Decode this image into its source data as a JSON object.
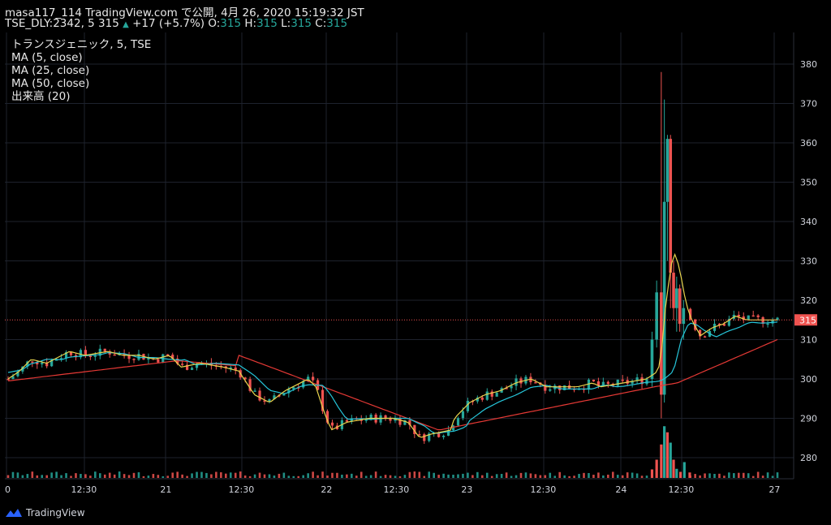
{
  "header": {
    "publish_line": "masa117_114 TradingView.com で公開, 4月 26, 2020 15:19:32 JST",
    "symbol_price": "TSE_DLY:2342, 5 315",
    "change_arrow": "▲",
    "change": "+17 (+5.7%)",
    "o_label": "O:",
    "o_value": "315",
    "h_label": "H:",
    "h_value": "315",
    "l_label": "L:",
    "l_value": "315",
    "c_label": "C:",
    "c_value": "315"
  },
  "legend": {
    "symbol": "トランスジェニック, 5, TSE",
    "ma5": "MA (5, close)",
    "ma25": "MA (25, close)",
    "ma50": "MA (50, close)",
    "volume": "出来高 (20)"
  },
  "footer": {
    "brand": "TradingView",
    "icon": "tradingview-logo-icon"
  },
  "colors": {
    "up": "#26a69a",
    "down": "#ef5350",
    "ma5": "#e8d44d",
    "ma25": "#26c6da",
    "ma50": "#e53935",
    "grid": "#1e222d",
    "text": "#d1d4dc",
    "price_tag": "#ef5350"
  },
  "chart_data": {
    "type": "candlestick",
    "y_axis": {
      "ticks": [
        280,
        290,
        300,
        310,
        320,
        330,
        340,
        350,
        360,
        370,
        380
      ],
      "range": [
        275,
        388
      ]
    },
    "x_axis": {
      "ticks": [
        "0",
        "12:30",
        "21",
        "12:30",
        "22",
        "12:30",
        "23",
        "12:30",
        "24",
        "12:30",
        "27"
      ]
    },
    "last_price": 315,
    "last_price_label": "315",
    "anchors": [
      [
        0,
        300,
        303
      ],
      [
        0.015,
        302,
        304
      ],
      [
        0.03,
        305,
        306
      ],
      [
        0.05,
        304,
        305
      ],
      [
        0.08,
        307,
        306
      ],
      [
        0.1,
        306,
        305
      ],
      [
        0.13,
        307,
        307
      ],
      [
        0.15,
        306,
        306
      ],
      [
        0.17,
        306,
        305
      ],
      [
        0.19,
        305,
        305
      ],
      [
        0.21,
        306,
        305
      ],
      [
        0.225,
        303,
        304
      ],
      [
        0.25,
        304,
        304
      ],
      [
        0.28,
        303,
        304
      ],
      [
        0.3,
        302,
        304
      ],
      [
        0.32,
        296,
        300
      ],
      [
        0.34,
        294,
        298
      ],
      [
        0.36,
        297,
        298
      ],
      [
        0.38,
        299,
        299
      ],
      [
        0.39,
        300,
        299
      ],
      [
        0.4,
        298,
        298
      ],
      [
        0.41,
        292,
        297
      ],
      [
        0.42,
        287,
        294
      ],
      [
        0.44,
        289,
        292
      ],
      [
        0.47,
        290,
        290
      ],
      [
        0.5,
        290,
        290
      ],
      [
        0.52,
        289,
        290
      ],
      [
        0.535,
        285,
        288
      ],
      [
        0.55,
        286,
        287
      ],
      [
        0.575,
        287,
        287
      ],
      [
        0.58,
        290,
        287
      ],
      [
        0.6,
        294,
        289
      ],
      [
        0.62,
        296,
        291
      ],
      [
        0.64,
        297,
        293
      ],
      [
        0.66,
        299,
        295
      ],
      [
        0.68,
        300,
        297
      ],
      [
        0.7,
        298,
        297
      ],
      [
        0.72,
        298,
        297
      ],
      [
        0.74,
        298,
        297
      ],
      [
        0.76,
        299,
        297
      ],
      [
        0.77,
        298,
        298
      ],
      [
        0.8,
        299,
        298
      ],
      [
        0.83,
        300,
        299
      ],
      [
        0.845,
        302,
        299
      ],
      [
        0.855,
        315,
        300
      ],
      [
        0.865,
        322,
        302
      ],
      [
        0.875,
        320,
        306
      ],
      [
        0.885,
        316,
        308
      ],
      [
        0.9,
        311,
        309
      ],
      [
        0.915,
        313,
        310
      ],
      [
        0.93,
        314,
        311
      ],
      [
        0.945,
        316,
        312
      ],
      [
        0.96,
        315,
        313
      ],
      [
        1.0,
        315,
        314
      ]
    ],
    "spike_candles": [
      {
        "i": 0.837,
        "open": 300,
        "close": 310,
        "high": 312,
        "low": 298
      },
      {
        "i": 0.843,
        "open": 310,
        "close": 322,
        "high": 325,
        "low": 308
      },
      {
        "i": 0.849,
        "open": 322,
        "close": 296,
        "high": 378,
        "low": 290
      },
      {
        "i": 0.853,
        "open": 296,
        "close": 345,
        "high": 371,
        "low": 294
      },
      {
        "i": 0.857,
        "open": 345,
        "close": 361,
        "high": 362,
        "low": 330
      },
      {
        "i": 0.861,
        "open": 361,
        "close": 327,
        "high": 362,
        "low": 318
      },
      {
        "i": 0.865,
        "open": 327,
        "close": 318,
        "high": 330,
        "low": 315
      },
      {
        "i": 0.869,
        "open": 318,
        "close": 323,
        "high": 326,
        "low": 312
      },
      {
        "i": 0.873,
        "open": 323,
        "close": 314,
        "high": 324,
        "low": 312
      },
      {
        "i": 0.878,
        "open": 314,
        "close": 318,
        "high": 320,
        "low": 310
      }
    ],
    "volume_spikes": [
      {
        "i": 0.837,
        "v": 0.14,
        "up": false
      },
      {
        "i": 0.843,
        "v": 0.3,
        "up": false
      },
      {
        "i": 0.849,
        "v": 0.55,
        "up": false
      },
      {
        "i": 0.853,
        "v": 0.85,
        "up": true
      },
      {
        "i": 0.857,
        "v": 0.75,
        "up": false
      },
      {
        "i": 0.861,
        "v": 0.58,
        "up": true
      },
      {
        "i": 0.865,
        "v": 0.3,
        "up": false
      },
      {
        "i": 0.869,
        "v": 0.15,
        "up": true
      },
      {
        "i": 0.874,
        "v": 0.1,
        "up": false
      },
      {
        "i": 0.879,
        "v": 0.26,
        "up": true
      },
      {
        "i": 0.886,
        "v": 0.09,
        "up": false
      }
    ]
  }
}
